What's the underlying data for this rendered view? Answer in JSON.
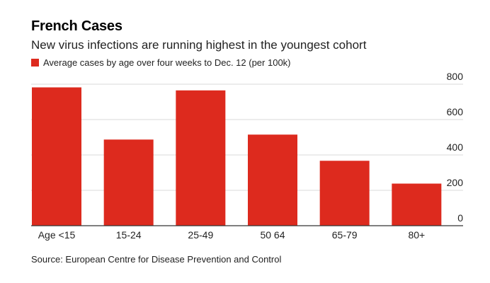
{
  "header": {
    "title": "French Cases",
    "subtitle": "New virus infections are running highest in the youngest cohort",
    "legend_label": "Average cases by age over four weeks to Dec. 12 (per 100k)"
  },
  "footer": {
    "source": "Source: European Centre for Disease Prevention and Control"
  },
  "colors": {
    "bar": "#dd2a1e",
    "grid": "#d9d9d9",
    "axis": "#333333"
  },
  "chart_data": {
    "type": "bar",
    "categories": [
      "Age <15",
      "15-24",
      "25-49",
      "50 64",
      "65-79",
      "80+"
    ],
    "series": [
      {
        "name": "Average cases by age over four weeks to Dec. 12 (per 100k)",
        "values": [
          782,
          487,
          765,
          515,
          367,
          238
        ]
      }
    ],
    "ylim": [
      0,
      800
    ],
    "yticks": [
      0,
      200,
      400,
      600,
      800
    ],
    "y_axis_side": "right",
    "grid": true,
    "legend": "top-left"
  }
}
